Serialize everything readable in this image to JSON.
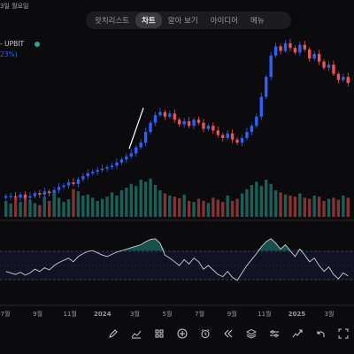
{
  "header": {
    "date_fragment": "3일 월요일",
    "tabs": [
      {
        "label": "왓치리스트",
        "active": false
      },
      {
        "label": "차트",
        "active": true
      },
      {
        "label": "알아 보기",
        "active": false
      },
      {
        "label": "아이디어",
        "active": false
      },
      {
        "label": "메뉴",
        "active": false
      }
    ]
  },
  "legend": {
    "symbol": "- UPBIT",
    "change_pct": "23%)",
    "status_color": "#26a69a"
  },
  "toolbar": {
    "icons": [
      "pencil-icon",
      "indicators-icon",
      "grid-icon",
      "add-icon",
      "alarm-icon",
      "replay-icon",
      "layers-icon",
      "settings-sliders-icon",
      "trend-icon",
      "undo-icon",
      "fullscreen-icon"
    ]
  },
  "colors": {
    "up": "#2962ff",
    "down": "#ef5350",
    "vol_up": "#26a69a",
    "vol_down": "#ef5350",
    "background": "#0b0b0d",
    "oscillator": "#cfcfcf",
    "oscillator_fill": "#26a69a"
  },
  "chart_data": {
    "type": "candlestick",
    "x_tick_labels": [
      "7월",
      "9월",
      "11월",
      "2024",
      "3월",
      "5월",
      "7월",
      "9월",
      "11월",
      "2025",
      "3월"
    ],
    "closes": [
      20,
      20,
      19,
      21,
      19,
      20,
      22,
      21,
      23,
      22,
      24,
      26,
      27,
      29,
      28,
      31,
      33,
      35,
      36,
      37,
      38,
      39,
      40,
      42,
      44,
      46,
      48,
      52,
      55,
      62,
      68,
      73,
      75,
      72,
      74,
      70,
      67,
      69,
      66,
      70,
      68,
      64,
      66,
      63,
      60,
      58,
      61,
      57,
      55,
      58,
      62,
      66,
      72,
      85,
      98,
      112,
      118,
      115,
      120,
      117,
      114,
      119,
      116,
      110,
      113,
      108,
      104,
      106,
      100,
      96,
      98,
      94
    ],
    "volumes": [
      30,
      25,
      35,
      28,
      40,
      32,
      26,
      22,
      38,
      30,
      44,
      36,
      28,
      33,
      52,
      48,
      40,
      42,
      36,
      30,
      34,
      38,
      46,
      40,
      50,
      55,
      62,
      58,
      70,
      66,
      72,
      60,
      50,
      44,
      40,
      38,
      35,
      42,
      30,
      28,
      34,
      30,
      26,
      36,
      32,
      28,
      40,
      30,
      34,
      44,
      52,
      60,
      66,
      58,
      70,
      62,
      50,
      46,
      42,
      40,
      38,
      44,
      36,
      34,
      40,
      38,
      30,
      34,
      36,
      32,
      40,
      36
    ],
    "oscillator": [
      42,
      40,
      38,
      41,
      37,
      40,
      45,
      42,
      47,
      44,
      50,
      54,
      57,
      60,
      55,
      62,
      66,
      69,
      70,
      67,
      64,
      62,
      65,
      68,
      70,
      72,
      74,
      76,
      78,
      82,
      85,
      86,
      80,
      64,
      60,
      55,
      50,
      58,
      52,
      60,
      55,
      45,
      50,
      44,
      38,
      35,
      42,
      34,
      30,
      40,
      50,
      58,
      66,
      75,
      82,
      86,
      80,
      72,
      78,
      70,
      62,
      72,
      64,
      55,
      60,
      50,
      42,
      48,
      38,
      32,
      40,
      36
    ],
    "oscillator_range": [
      0,
      100
    ],
    "oscillator_bands": [
      30,
      50,
      70
    ]
  }
}
